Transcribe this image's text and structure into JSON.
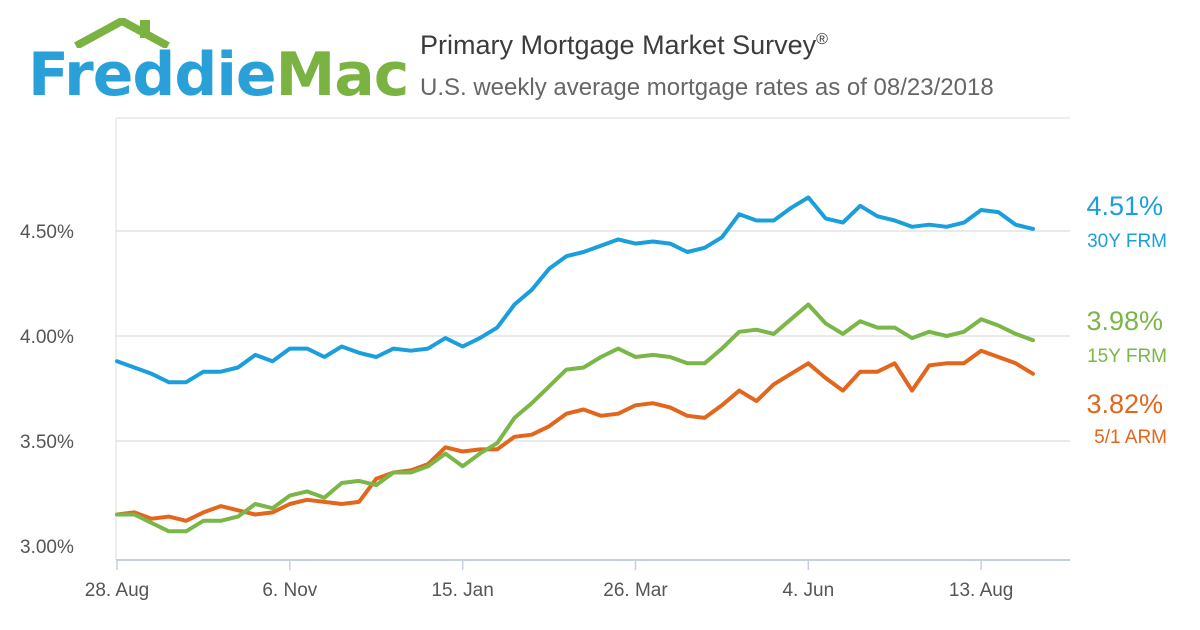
{
  "brand": {
    "part1": "Freddie",
    "part2": "Mac",
    "color1": "#2aa0d9",
    "color2": "#7bb342"
  },
  "title": "Primary Mortgage Market Survey",
  "title_mark": "®",
  "subtitle": "U.S. weekly average mortgage rates as of 08/23/2018",
  "chart_data": {
    "type": "line",
    "title": "Primary Mortgage Market Survey®",
    "subtitle": "U.S. weekly average mortgage rates as of 08/23/2018",
    "x_tick_labels": [
      "28. Aug",
      "6. Nov",
      "15. Jan",
      "26. Mar",
      "4. Jun",
      "13. Aug"
    ],
    "x_tick_weeks": [
      0,
      10,
      20,
      30,
      40,
      50
    ],
    "y_tick_labels": [
      "3.00%",
      "3.50%",
      "4.00%",
      "4.50%"
    ],
    "y_ticks": [
      3.0,
      3.5,
      4.0,
      4.5
    ],
    "ylim": [
      3.0,
      5.0
    ],
    "grid": true,
    "x_unit": "weekly, 2017-08-24 to 2018-08-23",
    "series": [
      {
        "name": "30Y FRM",
        "color": "#1a9fdc",
        "end_label": "4.51%",
        "values": [
          3.88,
          3.85,
          3.82,
          3.78,
          3.78,
          3.83,
          3.83,
          3.85,
          3.91,
          3.88,
          3.94,
          3.94,
          3.9,
          3.95,
          3.92,
          3.9,
          3.94,
          3.93,
          3.94,
          3.99,
          3.95,
          3.99,
          4.04,
          4.15,
          4.22,
          4.32,
          4.38,
          4.4,
          4.43,
          4.46,
          4.44,
          4.45,
          4.44,
          4.4,
          4.42,
          4.47,
          4.58,
          4.55,
          4.55,
          4.61,
          4.66,
          4.56,
          4.54,
          4.62,
          4.57,
          4.55,
          4.52,
          4.53,
          4.52,
          4.54,
          4.6,
          4.59,
          4.53,
          4.51
        ]
      },
      {
        "name": "15Y FRM",
        "color": "#7ab648",
        "end_label": "3.98%",
        "values": [
          3.15,
          3.15,
          3.11,
          3.07,
          3.07,
          3.12,
          3.12,
          3.14,
          3.2,
          3.18,
          3.24,
          3.26,
          3.23,
          3.3,
          3.31,
          3.29,
          3.35,
          3.35,
          3.38,
          3.44,
          3.38,
          3.44,
          3.49,
          3.61,
          3.68,
          3.76,
          3.84,
          3.85,
          3.9,
          3.94,
          3.9,
          3.91,
          3.9,
          3.87,
          3.87,
          3.94,
          4.02,
          4.03,
          4.01,
          4.08,
          4.15,
          4.06,
          4.01,
          4.07,
          4.04,
          4.04,
          3.99,
          4.02,
          4.0,
          4.02,
          4.08,
          4.05,
          4.01,
          3.98
        ]
      },
      {
        "name": "5/1 ARM",
        "color": "#e2661b",
        "end_label": "3.82%",
        "values": [
          3.15,
          3.16,
          3.13,
          3.14,
          3.12,
          3.16,
          3.19,
          3.17,
          3.15,
          3.16,
          3.2,
          3.22,
          3.21,
          3.2,
          3.21,
          3.32,
          3.35,
          3.36,
          3.39,
          3.47,
          3.45,
          3.46,
          3.46,
          3.52,
          3.53,
          3.57,
          3.63,
          3.65,
          3.62,
          3.63,
          3.67,
          3.68,
          3.66,
          3.62,
          3.61,
          3.67,
          3.74,
          3.69,
          3.77,
          3.82,
          3.87,
          3.8,
          3.74,
          3.83,
          3.83,
          3.87,
          3.74,
          3.86,
          3.87,
          3.87,
          3.93,
          3.9,
          3.87,
          3.82
        ]
      }
    ]
  }
}
